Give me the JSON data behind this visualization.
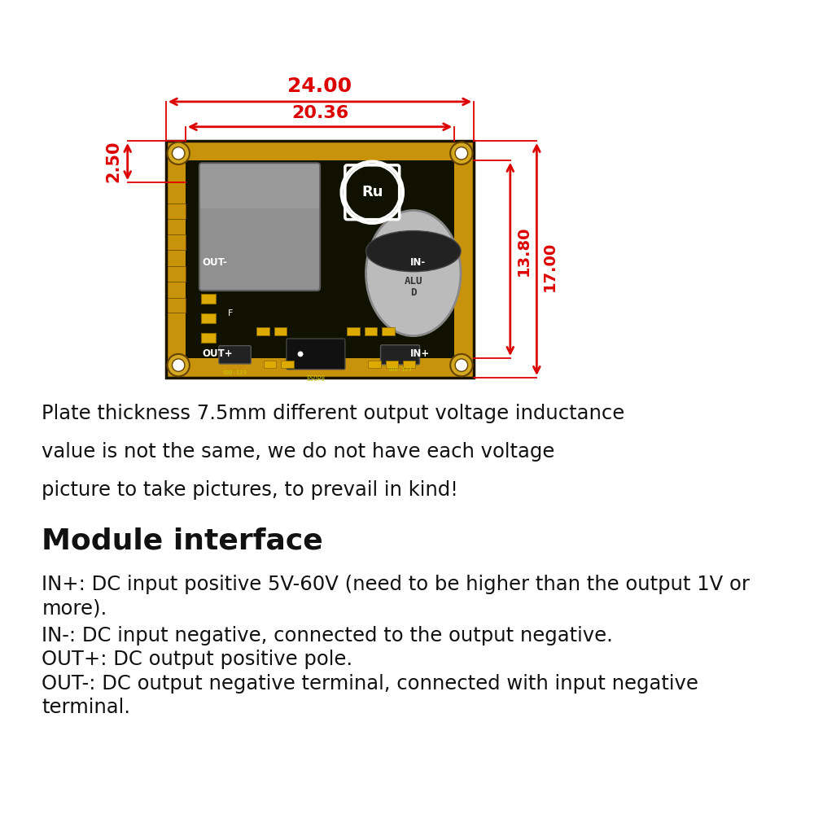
{
  "bg_color": "#ffffff",
  "red_color": "#dd0000",
  "board_dark": "#111100",
  "board_yellow": "#c8920a",
  "pad_color": "#d4a820",
  "chip_gray": "#8a8a8a",
  "cap_silver": "#bbbbbb",
  "text_color": "#111111",
  "dim_24": "24.00",
  "dim_2036": "20.36",
  "dim_250": "2.50",
  "dim_1380": "13.80",
  "dim_1700": "17.00",
  "description_line1": "Plate thickness 7.5mm different output voltage inductance",
  "description_line2": "value is not the same, we do not have each voltage",
  "description_line3": "picture to take pictures, to prevail in kind!",
  "section_title": "Module interface",
  "iface1a": "IN+: DC input positive 5V-60V (need to be higher than the output 1V or",
  "iface1b": "more).",
  "iface2": "IN-: DC input negative, connected to the output negative.",
  "iface3": "OUT+: DC output positive pole.",
  "iface4a": "OUT-: DC output negative terminal, connected with input negative",
  "iface4b": "terminal."
}
